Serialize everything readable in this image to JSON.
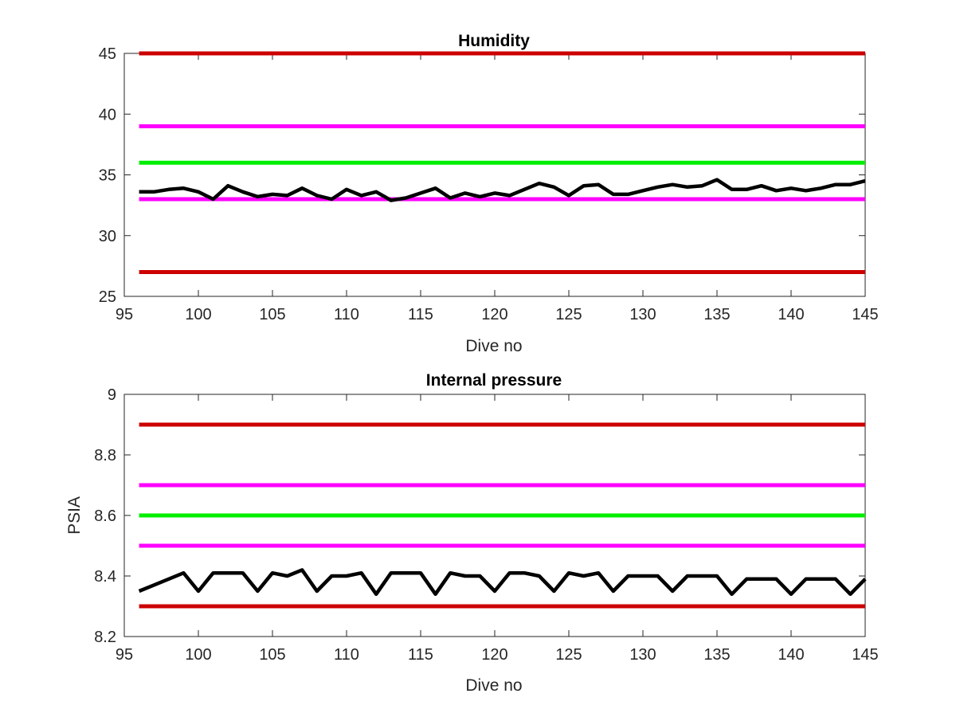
{
  "chart_data": [
    {
      "type": "line",
      "title": "Humidity",
      "xlabel": "Dive no",
      "ylabel": "",
      "xlim": [
        95,
        145
      ],
      "ylim": [
        25,
        45
      ],
      "xticks": [
        "95",
        "100",
        "105",
        "110",
        "115",
        "120",
        "125",
        "130",
        "135",
        "140",
        "145"
      ],
      "yticks": [
        "25",
        "30",
        "35",
        "40",
        "45"
      ],
      "grid": false,
      "thresholds": [
        {
          "value": 45,
          "color": "#cc0000"
        },
        {
          "value": 39,
          "color": "#ff00ff"
        },
        {
          "value": 36,
          "color": "#00ee00"
        },
        {
          "value": 33,
          "color": "#ff00ff"
        },
        {
          "value": 27,
          "color": "#cc0000"
        }
      ],
      "series": [
        {
          "color": "#000000",
          "x": [
            96,
            97,
            98,
            99,
            100,
            101,
            102,
            103,
            104,
            105,
            106,
            107,
            108,
            109,
            110,
            111,
            112,
            113,
            114,
            115,
            116,
            117,
            118,
            119,
            120,
            121,
            122,
            123,
            124,
            125,
            126,
            127,
            128,
            129,
            130,
            131,
            132,
            133,
            134,
            135,
            136,
            137,
            138,
            139,
            140,
            141,
            142,
            143,
            144,
            145
          ],
          "values": [
            33.6,
            33.6,
            33.8,
            33.9,
            33.6,
            33.0,
            34.1,
            33.6,
            33.2,
            33.4,
            33.3,
            33.9,
            33.3,
            33.0,
            33.8,
            33.3,
            33.6,
            32.9,
            33.1,
            33.5,
            33.9,
            33.1,
            33.5,
            33.2,
            33.5,
            33.3,
            33.8,
            34.3,
            34.0,
            33.3,
            34.1,
            34.2,
            33.4,
            33.4,
            33.7,
            34.0,
            34.2,
            34.0,
            34.1,
            34.6,
            33.8,
            33.8,
            34.1,
            33.7,
            33.9,
            33.7,
            33.9,
            34.2,
            34.2,
            34.5
          ]
        }
      ]
    },
    {
      "type": "line",
      "title": "Internal pressure",
      "xlabel": "Dive no",
      "ylabel": "PSIA",
      "xlim": [
        95,
        145
      ],
      "ylim": [
        8.2,
        9
      ],
      "xticks": [
        "95",
        "100",
        "105",
        "110",
        "115",
        "120",
        "125",
        "130",
        "135",
        "140",
        "145"
      ],
      "yticks": [
        "8.2",
        "8.4",
        "8.6",
        "8.8",
        "9"
      ],
      "grid": false,
      "thresholds": [
        {
          "value": 8.9,
          "color": "#cc0000"
        },
        {
          "value": 8.7,
          "color": "#ff00ff"
        },
        {
          "value": 8.6,
          "color": "#00ee00"
        },
        {
          "value": 8.5,
          "color": "#ff00ff"
        },
        {
          "value": 8.3,
          "color": "#cc0000"
        }
      ],
      "series": [
        {
          "color": "#000000",
          "x": [
            96,
            97,
            98,
            99,
            100,
            101,
            102,
            103,
            104,
            105,
            106,
            107,
            108,
            109,
            110,
            111,
            112,
            113,
            114,
            115,
            116,
            117,
            118,
            119,
            120,
            121,
            122,
            123,
            124,
            125,
            126,
            127,
            128,
            129,
            130,
            131,
            132,
            133,
            134,
            135,
            136,
            137,
            138,
            139,
            140,
            141,
            142,
            143,
            144,
            145
          ],
          "values": [
            8.35,
            8.37,
            8.39,
            8.41,
            8.35,
            8.41,
            8.41,
            8.41,
            8.35,
            8.41,
            8.4,
            8.42,
            8.35,
            8.4,
            8.4,
            8.41,
            8.34,
            8.41,
            8.41,
            8.41,
            8.34,
            8.41,
            8.4,
            8.4,
            8.35,
            8.41,
            8.41,
            8.4,
            8.35,
            8.41,
            8.4,
            8.41,
            8.35,
            8.4,
            8.4,
            8.4,
            8.35,
            8.4,
            8.4,
            8.4,
            8.34,
            8.39,
            8.39,
            8.39,
            8.34,
            8.39,
            8.39,
            8.39,
            8.34,
            8.39
          ]
        }
      ]
    }
  ]
}
